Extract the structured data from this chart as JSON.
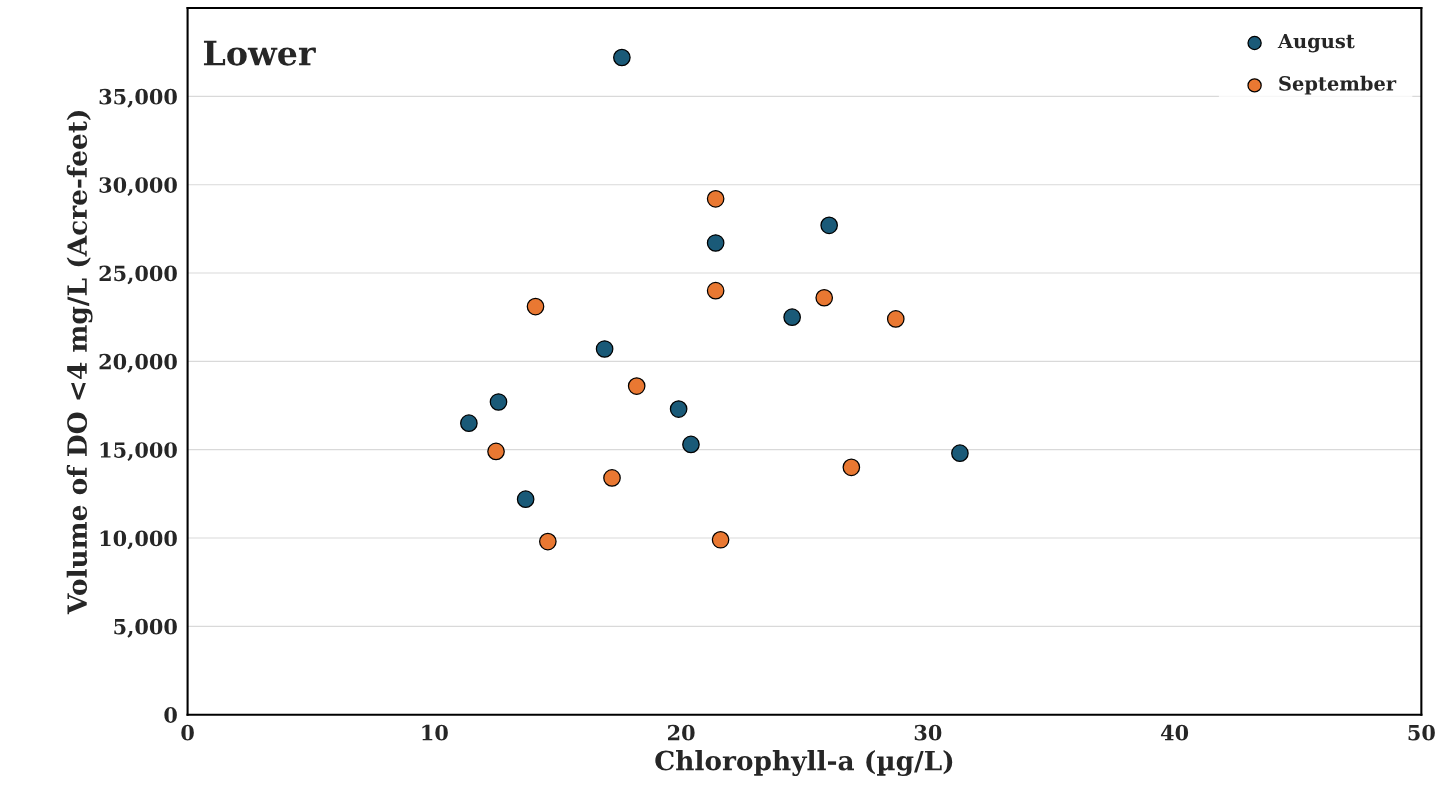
{
  "chart_data": {
    "type": "scatter",
    "title": "Lower",
    "xlabel": "Chlorophyll-a (µg/L)",
    "ylabel": "Volume of DO <4 mg/L (Acre-feet)",
    "xlim": [
      0,
      50
    ],
    "xticks": [
      0,
      10,
      20,
      30,
      40,
      50
    ],
    "ylim": [
      0,
      40000
    ],
    "yticks": [
      {
        "value": 0,
        "label": "0"
      },
      {
        "value": 5000,
        "label": "5,000"
      },
      {
        "value": 10000,
        "label": "10,000"
      },
      {
        "value": 15000,
        "label": "15,000"
      },
      {
        "value": 20000,
        "label": "20,000"
      },
      {
        "value": 25000,
        "label": "25,000"
      },
      {
        "value": 30000,
        "label": "30,000"
      },
      {
        "value": 35000,
        "label": "35,000"
      }
    ],
    "grid": "y",
    "legend": "top right",
    "marker": "circle",
    "series": [
      {
        "name": "August",
        "color": "#1a5a78",
        "x": [
          17.6,
          21.4,
          26.0,
          24.5,
          16.9,
          12.6,
          11.4,
          19.9,
          20.4,
          31.3,
          13.7
        ],
        "values": [
          37200,
          26700,
          27700,
          22500,
          20700,
          17700,
          16500,
          17300,
          15300,
          14800,
          12200
        ]
      },
      {
        "name": "September",
        "color": "#e97832",
        "x": [
          21.4,
          21.4,
          25.8,
          28.7,
          14.1,
          18.2,
          12.5,
          17.2,
          26.9,
          14.6,
          21.6
        ],
        "values": [
          29200,
          24000,
          23600,
          22400,
          23100,
          18600,
          14900,
          13400,
          14000,
          9800,
          9900
        ]
      }
    ]
  }
}
